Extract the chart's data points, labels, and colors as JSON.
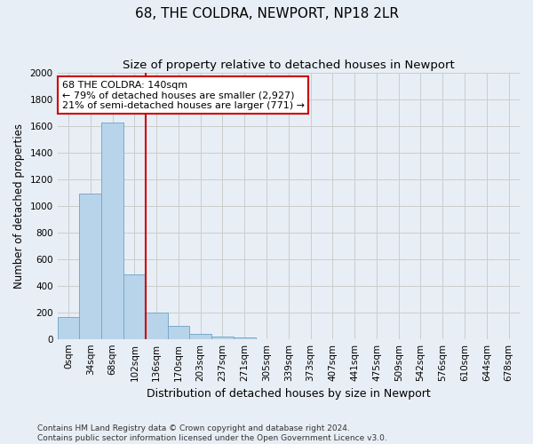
{
  "title": "68, THE COLDRA, NEWPORT, NP18 2LR",
  "subtitle": "Size of property relative to detached houses in Newport",
  "xlabel": "Distribution of detached houses by size in Newport",
  "ylabel": "Number of detached properties",
  "categories": [
    "0sqm",
    "34sqm",
    "68sqm",
    "102sqm",
    "136sqm",
    "170sqm",
    "203sqm",
    "237sqm",
    "271sqm",
    "305sqm",
    "339sqm",
    "373sqm",
    "407sqm",
    "441sqm",
    "475sqm",
    "509sqm",
    "542sqm",
    "576sqm",
    "610sqm",
    "644sqm",
    "678sqm"
  ],
  "bar_values": [
    165,
    1090,
    1625,
    485,
    200,
    100,
    35,
    20,
    10,
    0,
    0,
    0,
    0,
    0,
    0,
    0,
    0,
    0,
    0,
    0,
    0
  ],
  "bar_color": "#b8d4ea",
  "bar_edgecolor": "#7aaac8",
  "vline_x": 3.5,
  "vline_color": "#cc0000",
  "annotation_text": "68 THE COLDRA: 140sqm\n← 79% of detached houses are smaller (2,927)\n21% of semi-detached houses are larger (771) →",
  "annotation_box_facecolor": "#ffffff",
  "annotation_box_edgecolor": "#cc0000",
  "ylim": [
    0,
    2000
  ],
  "yticks": [
    0,
    200,
    400,
    600,
    800,
    1000,
    1200,
    1400,
    1600,
    1800,
    2000
  ],
  "grid_color": "#cccccc",
  "bg_color": "#e8eef5",
  "footer_text": "Contains HM Land Registry data © Crown copyright and database right 2024.\nContains public sector information licensed under the Open Government Licence v3.0.",
  "title_fontsize": 11,
  "subtitle_fontsize": 9.5,
  "xlabel_fontsize": 9,
  "ylabel_fontsize": 8.5,
  "tick_fontsize": 7.5,
  "annotation_fontsize": 8,
  "footer_fontsize": 6.5
}
